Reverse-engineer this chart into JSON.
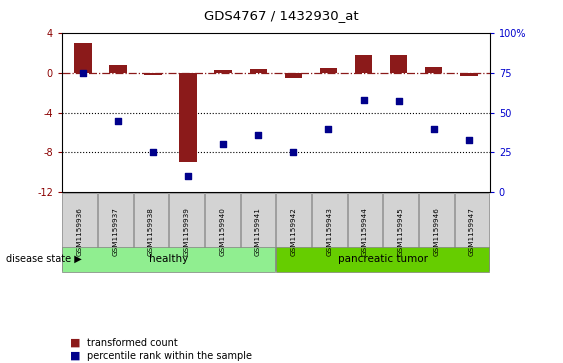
{
  "title": "GDS4767 / 1432930_at",
  "samples": [
    "GSM1159936",
    "GSM1159937",
    "GSM1159938",
    "GSM1159939",
    "GSM1159940",
    "GSM1159941",
    "GSM1159942",
    "GSM1159943",
    "GSM1159944",
    "GSM1159945",
    "GSM1159946",
    "GSM1159947"
  ],
  "bar_values": [
    3.0,
    0.8,
    -0.2,
    -9.0,
    0.3,
    0.4,
    -0.5,
    0.5,
    1.8,
    1.8,
    0.6,
    -0.3
  ],
  "dot_values": [
    75,
    45,
    25,
    10,
    30,
    36,
    25,
    40,
    58,
    57,
    40,
    33
  ],
  "ylim_left": [
    -12,
    4
  ],
  "ylim_right": [
    0,
    100
  ],
  "yticks_left": [
    4,
    0,
    -4,
    -8,
    -12
  ],
  "yticks_right": [
    100,
    75,
    50,
    25,
    0
  ],
  "bar_color": "#8B1A1A",
  "dot_color": "#00008B",
  "dotted_lines": [
    -4,
    -8
  ],
  "healthy_label": "healthy",
  "tumor_label": "pancreatic tumor",
  "group_color_healthy": "#90EE90",
  "group_color_tumor": "#66CD00",
  "disease_state_label": "disease state",
  "legend_bar_label": "transformed count",
  "legend_dot_label": "percentile rank within the sample",
  "bar_color_red": "#8B0000",
  "ylabel_right_color": "#0000CD",
  "bar_width": 0.5,
  "background_color": "#FFFFFF",
  "tick_label_box_color": "#D3D3D3"
}
